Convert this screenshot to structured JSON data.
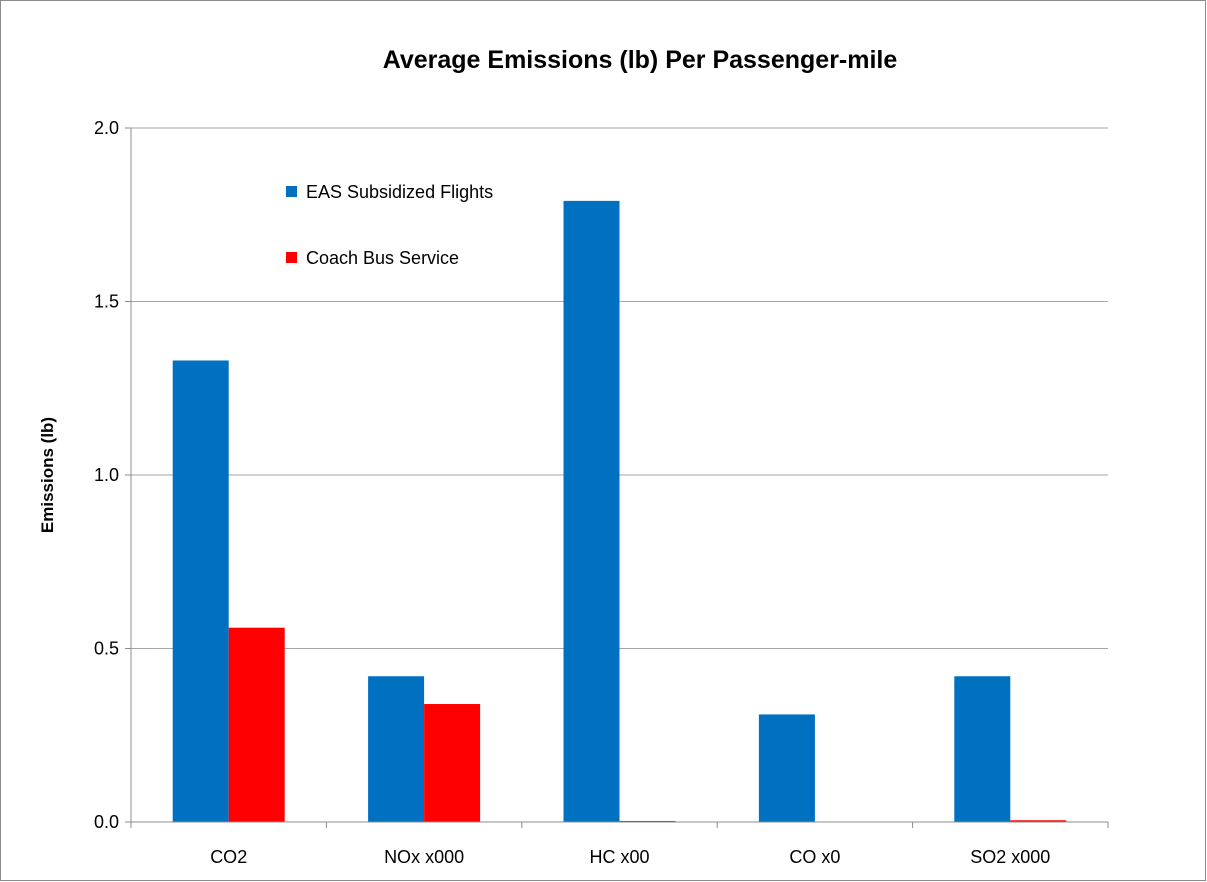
{
  "chart_data": {
    "type": "bar",
    "title": "Average Emissions (lb) Per Passenger-mile",
    "xlabel": "",
    "ylabel": "Emissions (lb)",
    "ylim": [
      0,
      2.0
    ],
    "yticks": [
      "0.0",
      "0.5",
      "1.0",
      "1.5",
      "2.0"
    ],
    "ytick_values": [
      0,
      0.5,
      1.0,
      1.5,
      2.0
    ],
    "categories": [
      "CO2",
      "NOx x000",
      "HC x00",
      "CO x0",
      "SO2 x000"
    ],
    "series": [
      {
        "name": "EAS Subsidized Flights",
        "color": "#0070c0",
        "values": [
          1.33,
          0.42,
          1.79,
          0.31,
          0.42
        ]
      },
      {
        "name": "Coach Bus Service",
        "color": "#ff0000",
        "values": [
          0.56,
          0.34,
          0.003,
          0.0,
          0.005
        ]
      }
    ],
    "grid": true,
    "legend_position": "top-left, inside plot"
  }
}
